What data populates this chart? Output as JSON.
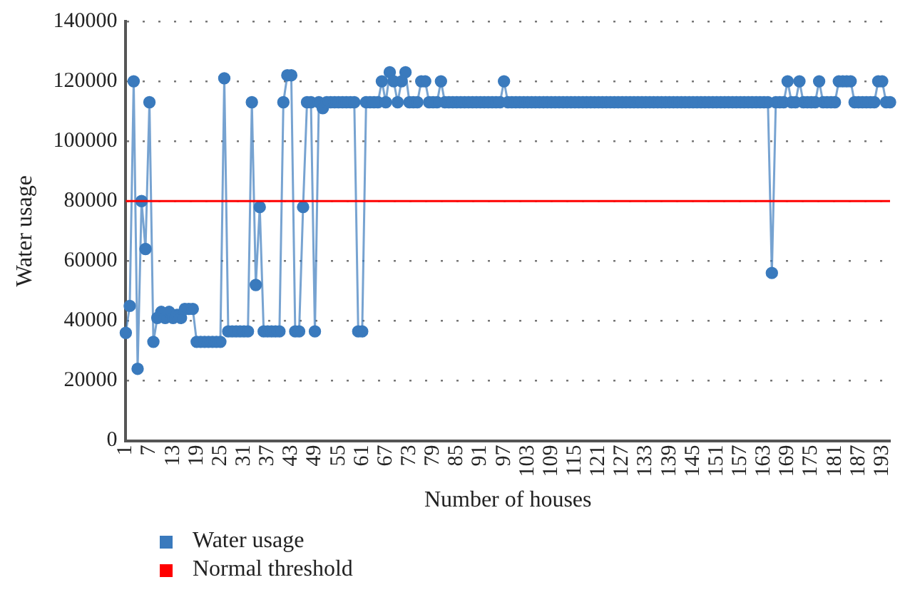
{
  "chart_data": {
    "type": "line",
    "xlabel": "Number of houses",
    "ylabel": "Water usage",
    "categories": [
      "1",
      null,
      null,
      null,
      null,
      null,
      "7",
      null,
      null,
      null,
      null,
      null,
      "13",
      null,
      null,
      null,
      null,
      null,
      "19",
      null,
      null,
      null,
      null,
      null,
      "25",
      null,
      null,
      null,
      null,
      null,
      "31",
      null,
      null,
      null,
      null,
      null,
      "37",
      null,
      null,
      null,
      null,
      null,
      "43",
      null,
      null,
      null,
      null,
      null,
      "49",
      null,
      null,
      null,
      null,
      null,
      "55",
      null,
      null,
      null,
      null,
      null,
      "61",
      null,
      null,
      null,
      null,
      null,
      "67",
      null,
      null,
      null,
      null,
      null,
      "73",
      null,
      null,
      null,
      null,
      null,
      "79",
      null,
      null,
      null,
      null,
      null,
      "85",
      null,
      null,
      null,
      null,
      null,
      "91",
      null,
      null,
      null,
      null,
      null,
      "97",
      null,
      null,
      null,
      null,
      null,
      "103",
      null,
      null,
      null,
      null,
      null,
      "109",
      null,
      null,
      null,
      null,
      null,
      "115",
      null,
      null,
      null,
      null,
      null,
      "121",
      null,
      null,
      null,
      null,
      null,
      "127",
      null,
      null,
      null,
      null,
      null,
      "133",
      null,
      null,
      null,
      null,
      null,
      "139",
      null,
      null,
      null,
      null,
      null,
      "145",
      null,
      null,
      null,
      null,
      null,
      "151",
      null,
      null,
      null,
      null,
      null,
      "157",
      null,
      null,
      null,
      null,
      null,
      "163",
      null,
      null,
      null,
      null,
      null,
      "169",
      null,
      null,
      null,
      null,
      null,
      "175",
      null,
      null,
      null,
      null,
      null,
      "181",
      null,
      null,
      null,
      null,
      null,
      "187",
      null,
      null,
      null,
      null,
      null,
      "193",
      null,
      null
    ],
    "series": [
      {
        "name": "Water usage",
        "color": "#3a7abd",
        "values": [
          36000,
          45000,
          120000,
          24000,
          80000,
          64000,
          113000,
          33000,
          41000,
          43000,
          41000,
          43000,
          41000,
          42000,
          41000,
          44000,
          44000,
          44000,
          33000,
          33000,
          33000,
          33000,
          33000,
          33000,
          33000,
          121000,
          36500,
          36500,
          36500,
          36500,
          36500,
          36500,
          113000,
          52000,
          78000,
          36500,
          36500,
          36500,
          36500,
          36500,
          113000,
          122000,
          122000,
          36500,
          36500,
          78000,
          113000,
          113000,
          36500,
          113000,
          111000,
          113000,
          113000,
          113000,
          113000,
          113000,
          113000,
          113000,
          113000,
          36500,
          36500,
          113000,
          113000,
          113000,
          113000,
          120000,
          113000,
          123000,
          120000,
          113000,
          120000,
          123000,
          113000,
          113000,
          113000,
          120000,
          120000,
          113000,
          113000,
          113000,
          120000,
          113000,
          113000,
          113000,
          113000,
          113000,
          113000,
          113000,
          113000,
          113000,
          113000,
          113000,
          113000,
          113000,
          113000,
          113000,
          120000,
          113000,
          113000,
          113000,
          113000,
          113000,
          113000,
          113000,
          113000,
          113000,
          113000,
          113000,
          113000,
          113000,
          113000,
          113000,
          113000,
          113000,
          113000,
          113000,
          113000,
          113000,
          113000,
          113000,
          113000,
          113000,
          113000,
          113000,
          113000,
          113000,
          113000,
          113000,
          113000,
          113000,
          113000,
          113000,
          113000,
          113000,
          113000,
          113000,
          113000,
          113000,
          113000,
          113000,
          113000,
          113000,
          113000,
          113000,
          113000,
          113000,
          113000,
          113000,
          113000,
          113000,
          113000,
          113000,
          113000,
          113000,
          113000,
          113000,
          113000,
          113000,
          113000,
          113000,
          113000,
          113000,
          113000,
          113000,
          56000,
          113000,
          113000,
          113000,
          120000,
          113000,
          113000,
          120000,
          113000,
          113000,
          113000,
          113000,
          120000,
          113000,
          113000,
          113000,
          113000,
          120000,
          120000,
          120000,
          120000,
          113000,
          113000,
          113000,
          113000,
          113000,
          113000,
          120000,
          120000,
          113000,
          113000
        ]
      }
    ],
    "ref_lines": [
      {
        "axis": "y",
        "value": 80000,
        "label": "Normal threshold",
        "color": "#ff0000"
      }
    ],
    "ylim": [
      0,
      140000
    ],
    "yticks": [
      0,
      20000,
      40000,
      60000,
      80000,
      100000,
      120000,
      140000
    ],
    "grid": "y",
    "legend": "bottom",
    "marker": "circle",
    "line_style": "solid"
  }
}
